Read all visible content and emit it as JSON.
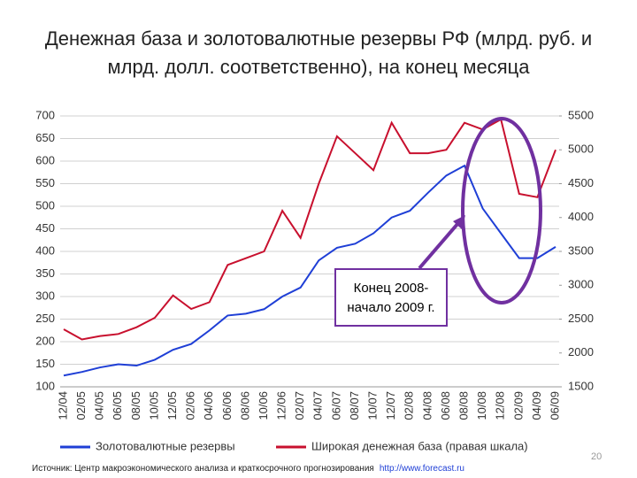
{
  "chart_data": {
    "type": "line",
    "title": "Денежная база и золотовалютные резервы РФ (млрд. руб. и млрд. долл. соответственно), на конец месяца",
    "categories": [
      "12/04",
      "02/05",
      "04/05",
      "06/05",
      "08/05",
      "10/05",
      "12/05",
      "02/06",
      "04/06",
      "06/06",
      "08/06",
      "10/06",
      "12/06",
      "02/07",
      "04/07",
      "06/07",
      "08/07",
      "10/07",
      "12/07",
      "02/08",
      "04/08",
      "06/08",
      "08/08",
      "10/08",
      "12/08",
      "02/09",
      "04/09",
      "06/09"
    ],
    "series": [
      {
        "name": "Золотовалютные резервы",
        "color": "#1f3fd6",
        "axis": "y",
        "values": [
          125,
          133,
          143,
          150,
          147,
          160,
          182,
          195,
          225,
          258,
          262,
          272,
          300,
          320,
          380,
          408,
          417,
          440,
          475,
          490,
          530,
          568,
          590,
          495,
          440,
          385,
          385,
          410
        ]
      },
      {
        "name": "Широкая денежная база (правая шкала)",
        "color": "#c8102e",
        "axis": "y2",
        "values": [
          2350,
          2200,
          2250,
          2280,
          2380,
          2520,
          2850,
          2650,
          2750,
          3300,
          3400,
          3500,
          4100,
          3700,
          4500,
          5200,
          4950,
          4700,
          5400,
          4950,
          4950,
          5000,
          5400,
          5300,
          5450,
          4350,
          4300,
          5000
        ]
      }
    ],
    "ylim": [
      100,
      700
    ],
    "yticks": [
      100,
      150,
      200,
      250,
      300,
      350,
      400,
      450,
      500,
      550,
      600,
      650,
      700
    ],
    "y2lim": [
      1500,
      5500
    ],
    "y2ticks": [
      1500,
      2000,
      2500,
      3000,
      3500,
      4000,
      4500,
      5000,
      5500
    ],
    "grid": true,
    "annotation": "Конец 2008-начало 2009 г.",
    "source": "Источник: Центр макроэкономического анализа и краткосрочного прогнозирования",
    "source_link": "http://www.forecast.ru",
    "page_number": "20"
  }
}
